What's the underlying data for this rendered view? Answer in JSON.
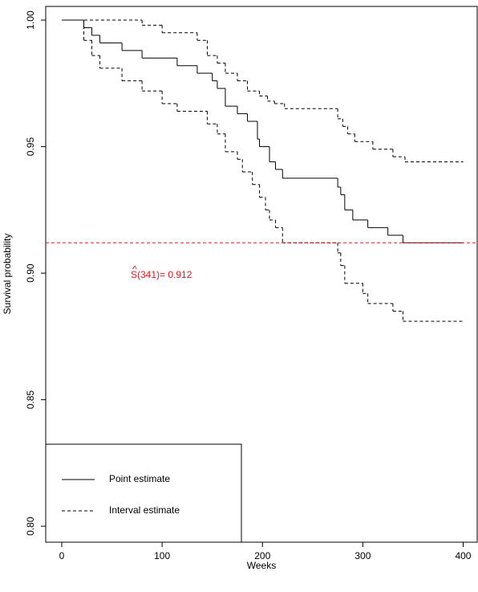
{
  "chart_data": {
    "type": "step",
    "xlabel": "Weeks",
    "ylabel": "Survival probability",
    "xlim": [
      -16,
      414
    ],
    "ylim": [
      0.7937,
      1.0054
    ],
    "xticks": [
      0,
      100,
      200,
      300,
      400
    ],
    "yticks": [
      {
        "value": 0.8,
        "label": "0.80"
      },
      0.85,
      {
        "value": 0.9,
        "label": "0.90"
      },
      0.95,
      {
        "value": 1.0,
        "label": "1.00"
      }
    ],
    "legend": "bottomleft",
    "series": [
      {
        "name": "Point estimate",
        "color": "#000000",
        "dash": "solid",
        "x": [
          0,
          22,
          30,
          38,
          60,
          80,
          115,
          135,
          150,
          155,
          163,
          175,
          185,
          195,
          197,
          207,
          213,
          220,
          275,
          278,
          282,
          290,
          305,
          325,
          340,
          400
        ],
        "values": [
          1.0,
          0.997,
          0.994,
          0.991,
          0.988,
          0.985,
          0.982,
          0.979,
          0.976,
          0.973,
          0.966,
          0.963,
          0.96,
          0.953,
          0.95,
          0.944,
          0.941,
          0.9375,
          0.934,
          0.931,
          0.925,
          0.921,
          0.918,
          0.915,
          0.912,
          0.912
        ]
      },
      {
        "name": "Interval estimate",
        "color": "#000000",
        "dash": "dashed",
        "bounds": [
          {
            "x": [
              0,
              80,
              100,
              135,
              145,
              155,
              163,
              175,
              185,
              197,
              205,
              212,
              222,
              275,
              280,
              285,
              292,
              310,
              330,
              342,
              400
            ],
            "values": [
              1.0,
              0.998,
              0.995,
              0.992,
              0.986,
              0.983,
              0.979,
              0.976,
              0.972,
              0.97,
              0.968,
              0.967,
              0.965,
              0.961,
              0.958,
              0.955,
              0.952,
              0.949,
              0.946,
              0.944,
              0.944
            ]
          },
          {
            "x": [
              0,
              22,
              30,
              38,
              60,
              80,
              100,
              115,
              145,
              155,
              163,
              175,
              180,
              190,
              197,
              203,
              207,
              213,
              220,
              275,
              278,
              282,
              300,
              305,
              330,
              340,
              400
            ],
            "values": [
              1.0,
              0.992,
              0.986,
              0.981,
              0.976,
              0.972,
              0.967,
              0.964,
              0.959,
              0.955,
              0.948,
              0.945,
              0.94,
              0.935,
              0.93,
              0.925,
              0.921,
              0.918,
              0.912,
              0.908,
              0.903,
              0.896,
              0.892,
              0.888,
              0.885,
              0.881,
              0.881
            ]
          }
        ]
      }
    ],
    "hline": {
      "value": 0.912,
      "color": "#e31a1c"
    },
    "annotation": {
      "hat": "^",
      "text": "S(341)= 0.912",
      "color": "#e31a1c"
    }
  }
}
